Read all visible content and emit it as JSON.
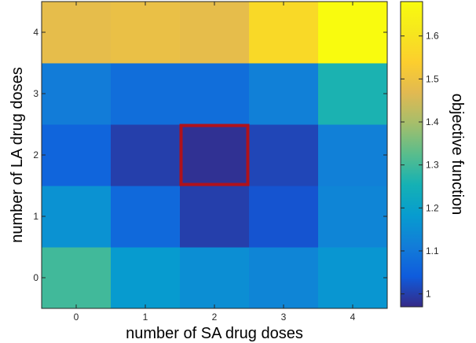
{
  "chart_data": {
    "type": "heatmap",
    "title": "",
    "xlabel": "number of SA drug doses",
    "ylabel": "number of LA drug doses",
    "x_categories": [
      "0",
      "1",
      "2",
      "3",
      "4"
    ],
    "y_categories": [
      "0",
      "1",
      "2",
      "3",
      "4"
    ],
    "values": [
      [
        1.3,
        1.18,
        1.15,
        1.13,
        1.17
      ],
      [
        1.16,
        1.07,
        1.0,
        1.03,
        1.13
      ],
      [
        1.06,
        1.0,
        0.98,
        1.01,
        1.12
      ],
      [
        1.11,
        1.08,
        1.08,
        1.12,
        1.26
      ],
      [
        1.48,
        1.49,
        1.48,
        1.57,
        1.68
      ]
    ],
    "values_note": "",
    "highlight": {
      "x": "2",
      "y": "2",
      "color": "#b0121b"
    },
    "colorbar": {
      "label": "objective function",
      "min": 0.97,
      "max": 1.68,
      "ticks": [
        "1",
        "1.1",
        "1.2",
        "1.3",
        "1.4",
        "1.5",
        "1.6"
      ],
      "colormap": "parula"
    },
    "grid": false
  }
}
